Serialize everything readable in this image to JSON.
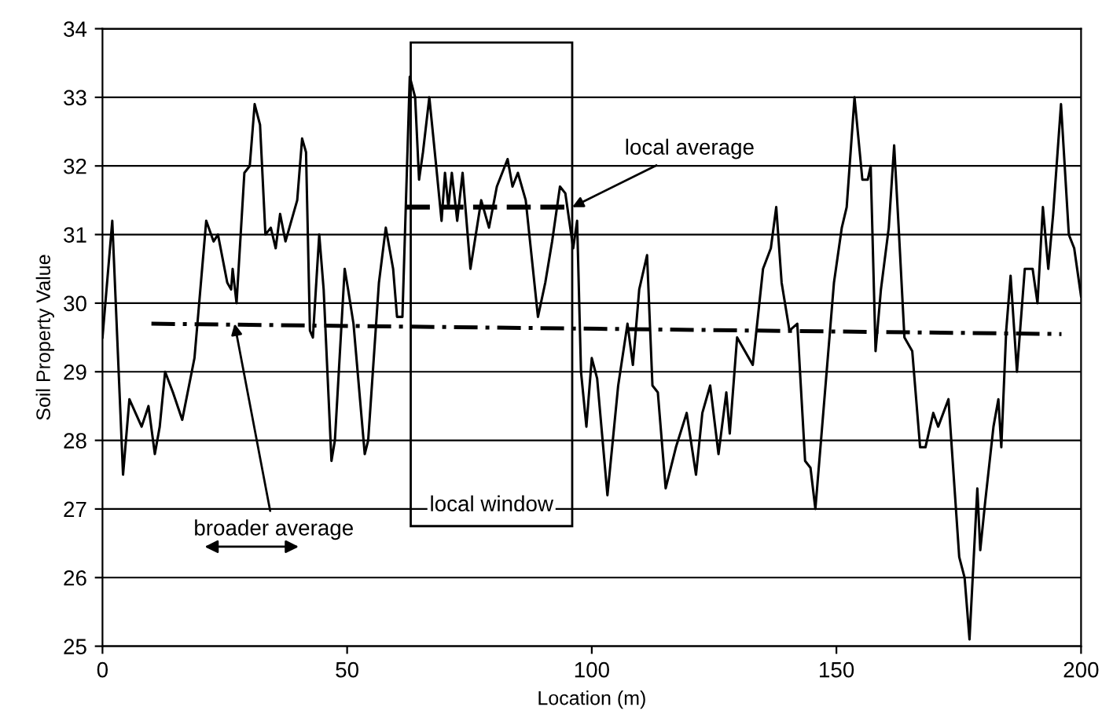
{
  "chart_data": {
    "type": "line",
    "xlabel": "Location (m)",
    "ylabel": "Soil Property Value",
    "xlim": [
      0,
      200
    ],
    "xticks": [
      0,
      50,
      100,
      150,
      200
    ],
    "ylim": [
      25,
      34
    ],
    "yticks": [
      25,
      26,
      27,
      28,
      29,
      30,
      31,
      32,
      33,
      34
    ],
    "grid": "y",
    "series": [
      {
        "color": "#000000",
        "line_style": "solid",
        "x": [
          0,
          2,
          4.2,
          5.5,
          8,
          9.4,
          10.7,
          11.7,
          12.8,
          14.4,
          16.3,
          18.8,
          21.2,
          22.7,
          23.6,
          25.5,
          26.3,
          26.6,
          27.4,
          29,
          30.1,
          31.1,
          32.2,
          33.3,
          34.4,
          35.4,
          36.3,
          37.4,
          39.8,
          40.8,
          41.6,
          42.4,
          43,
          44.3,
          45.2,
          46.8,
          47.5,
          49.5,
          50.2,
          51.3,
          53.6,
          54.3,
          56.5,
          57.9,
          59.4,
          60.2,
          61.3,
          62.8,
          63.9,
          64.7,
          65.5,
          66.8,
          68.2,
          69.3,
          70,
          70.7,
          71.4,
          72.5,
          73.6,
          75.2,
          77.4,
          79,
          80.6,
          82.8,
          83.8,
          84.9,
          86.5,
          89,
          90.5,
          91.9,
          93.5,
          94.6,
          96.2,
          97,
          97.8,
          98.9,
          100,
          101.1,
          103.2,
          105.4,
          107.3,
          108.4,
          109.7,
          111.3,
          112.4,
          113.5,
          115.1,
          117.2,
          119.4,
          121.3,
          122.6,
          124.2,
          125.9,
          127.5,
          128.2,
          129.7,
          131.3,
          132.9,
          135,
          136.6,
          137.7,
          138.8,
          140.4,
          142,
          143.6,
          144.7,
          145.7,
          149.5,
          151.1,
          152.1,
          153.7,
          155.3,
          156.4,
          157,
          158,
          159.1,
          160.7,
          161.8,
          162.8,
          163.9,
          165.5,
          167.1,
          168.2,
          169.8,
          170.8,
          172.9,
          175.1,
          176.2,
          177.2,
          178.8,
          179.4,
          180.4,
          182.1,
          183.1,
          183.7,
          184.7,
          185.6,
          186.9,
          188.5,
          190.1,
          191.1,
          192.2,
          193.3,
          194.3,
          195.9,
          197.5,
          198.6,
          200
        ],
        "values": [
          29.5,
          31.2,
          27.5,
          28.6,
          28.2,
          28.5,
          27.8,
          28.2,
          29.0,
          28.7,
          28.3,
          29.2,
          31.2,
          30.9,
          31.0,
          30.3,
          30.2,
          30.5,
          30.0,
          31.9,
          32.0,
          32.9,
          32.6,
          31.0,
          31.1,
          30.8,
          31.3,
          30.9,
          31.5,
          32.4,
          32.2,
          29.6,
          29.5,
          31.0,
          30.2,
          27.7,
          28.0,
          30.5,
          30.2,
          29.7,
          27.8,
          28.0,
          30.3,
          31.1,
          30.5,
          29.8,
          29.8,
          33.3,
          33.0,
          31.8,
          32.2,
          33.0,
          32.0,
          31.2,
          31.9,
          31.4,
          31.9,
          31.2,
          31.9,
          30.5,
          31.5,
          31.1,
          31.7,
          32.1,
          31.7,
          31.9,
          31.5,
          29.8,
          30.3,
          30.9,
          31.7,
          31.6,
          30.8,
          31.2,
          29.0,
          28.2,
          29.2,
          28.9,
          27.2,
          28.8,
          29.7,
          29.1,
          30.2,
          30.7,
          28.8,
          28.7,
          27.3,
          27.9,
          28.4,
          27.5,
          28.4,
          28.8,
          27.8,
          28.7,
          28.1,
          29.5,
          29.3,
          29.1,
          30.5,
          30.8,
          31.4,
          30.3,
          29.6,
          29.7,
          27.7,
          27.6,
          27.0,
          30.3,
          31.1,
          31.4,
          33.0,
          31.8,
          31.8,
          32.0,
          29.3,
          30.2,
          31.1,
          32.3,
          31.0,
          29.5,
          29.3,
          27.9,
          27.9,
          28.4,
          28.2,
          28.6,
          26.3,
          26.0,
          25.1,
          27.3,
          26.4,
          27.1,
          28.2,
          28.6,
          27.9,
          29.6,
          30.4,
          29.0,
          30.5,
          30.5,
          30.0,
          31.4,
          30.5,
          31.3,
          32.9,
          31.0,
          30.8,
          30.1
        ]
      },
      {
        "color": "#000000",
        "line_style": "dashdot",
        "x": [
          10,
          196
        ],
        "values": [
          29.7,
          29.55
        ]
      },
      {
        "color": "#000000",
        "line_style": "dashed",
        "x": [
          62,
          95
        ],
        "values": [
          31.4,
          31.4
        ]
      }
    ],
    "annotations": [
      {
        "text": "local average",
        "x": 96,
        "y": 31.4
      },
      {
        "text": "broader average",
        "x": 27,
        "y": 29.7
      },
      "local window"
    ]
  }
}
